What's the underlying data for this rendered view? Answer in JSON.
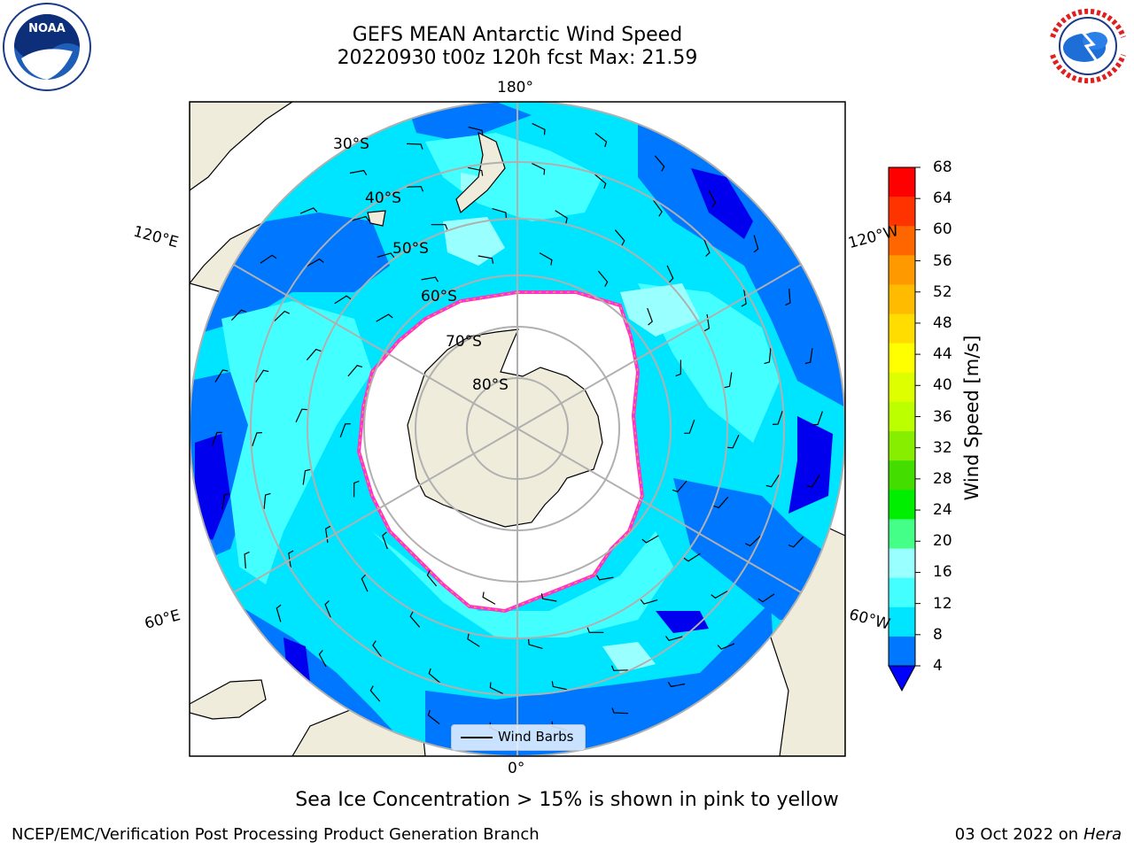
{
  "title": {
    "line1": "GEFS MEAN Antarctic Wind Speed",
    "line2": "20220930 t00z 120h fcst   Max: 21.59"
  },
  "logos": {
    "left": "NOAA",
    "right": "NATIONAL WEATHER SERVICE"
  },
  "map": {
    "longitude_labels": [
      "180°",
      "120°E",
      "120°W",
      "60°E",
      "60°W",
      "0°"
    ],
    "latitude_labels": [
      "30°S",
      "40°S",
      "50°S",
      "60°S",
      "70°S",
      "80°S"
    ],
    "legend_label": "Wind Barbs",
    "colors": {
      "land": "#efecdc",
      "ice_edge": "#ff33cc",
      "wind_4_8": "#0077ff",
      "wind_8_12": "#00e5ff",
      "wind_12_16": "#44ffff",
      "wind_16_20": "#99ffff"
    }
  },
  "colorbar": {
    "label": "Wind Speed [m/s]",
    "ticks": [
      "68",
      "64",
      "60",
      "56",
      "52",
      "48",
      "44",
      "40",
      "36",
      "32",
      "28",
      "24",
      "20",
      "16",
      "12",
      "8",
      "4"
    ],
    "colors": [
      "#ff0000",
      "#ff3300",
      "#ff6600",
      "#ff9900",
      "#ffbb00",
      "#ffdd00",
      "#ffff00",
      "#ddff00",
      "#bbff00",
      "#88ee00",
      "#44dd00",
      "#00ee00",
      "#44ff88",
      "#99ffff",
      "#44ffff",
      "#00e5ff",
      "#0077ff"
    ],
    "extend_color": "#0000ff"
  },
  "caption": "Sea Ice Concentration > 15% is shown in pink to yellow",
  "footer": {
    "left": "NCEP/EMC/Verification Post Processing Product Generation Branch",
    "right_date": "03 Oct 2022 on ",
    "right_host": "Hera"
  }
}
